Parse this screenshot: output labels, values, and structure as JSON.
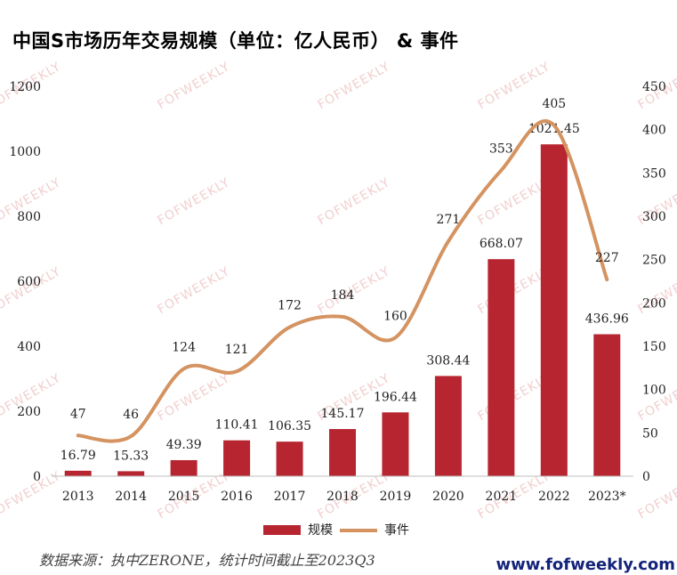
{
  "title": "中国S市场历年交易规模（单位：亿人民币） & 事件",
  "chart_data": {
    "type": "bar",
    "categories": [
      "2013",
      "2014",
      "2015",
      "2016",
      "2017",
      "2018",
      "2019",
      "2020",
      "2021",
      "2022",
      "2023*"
    ],
    "series": [
      {
        "name": "规模",
        "type": "bar",
        "axis": "left",
        "color": "#b72530",
        "values": [
          16.79,
          15.33,
          49.39,
          110.41,
          106.35,
          145.17,
          196.44,
          308.44,
          668.07,
          1021.45,
          436.96
        ],
        "labels": [
          "16.79",
          "15.33",
          "49.39",
          "110.41",
          "106.35",
          "145.17",
          "196.44",
          "308.44",
          "668.07",
          "1021.45",
          "436.96"
        ]
      },
      {
        "name": "事件",
        "type": "line",
        "axis": "right",
        "color": "#d49360",
        "values": [
          47,
          46,
          124,
          121,
          172,
          184,
          160,
          271,
          353,
          405,
          227
        ],
        "labels": [
          "47",
          "46",
          "124",
          "121",
          "172",
          "184",
          "160",
          "271",
          "353",
          "405",
          "227"
        ]
      }
    ],
    "y_left": {
      "min": 0,
      "max": 1200,
      "ticks": [
        "0",
        "200",
        "400",
        "600",
        "800",
        "1000",
        "1200"
      ]
    },
    "y_right": {
      "min": 0,
      "max": 450,
      "ticks": [
        "0",
        "50",
        "100",
        "150",
        "200",
        "250",
        "300",
        "350",
        "400",
        "450"
      ]
    },
    "grid": false,
    "legend": "bottom"
  },
  "watermark": "FOFWEEKLY",
  "source": "数据来源：执中ZERONE，统计时间截止至2023Q3",
  "website": "www.fofweekly.com"
}
